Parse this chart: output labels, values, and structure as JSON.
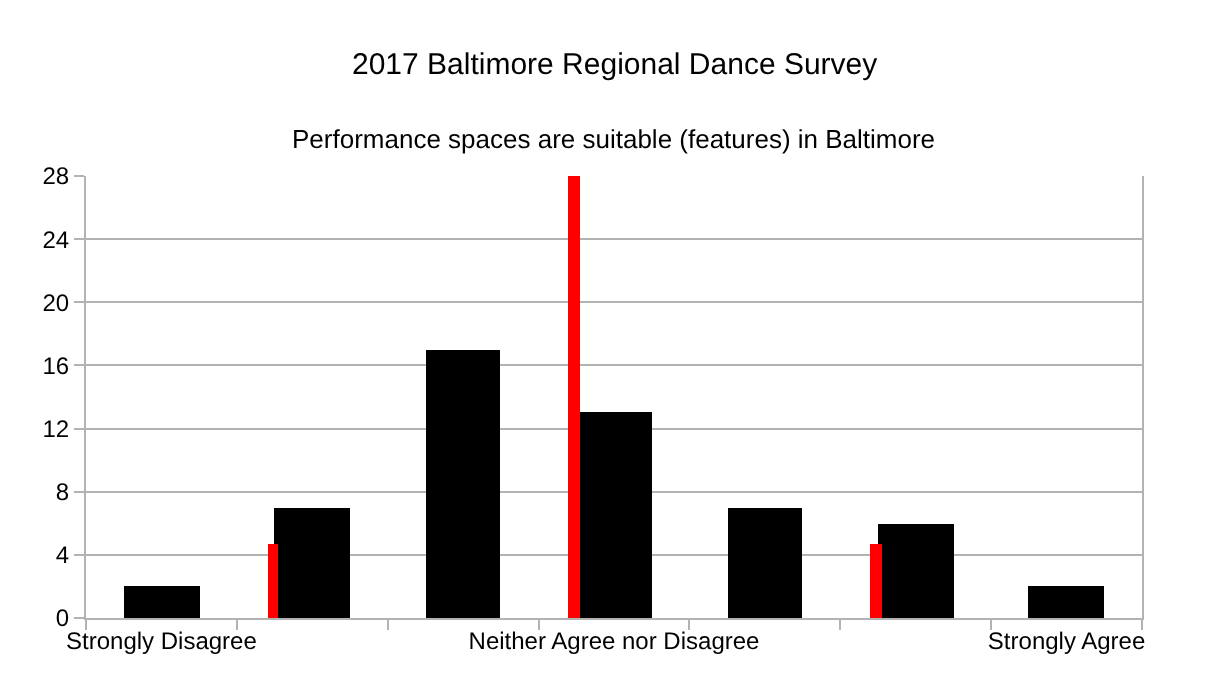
{
  "chart_data": {
    "type": "bar",
    "title": "2017 Baltimore Regional Dance Survey",
    "subtitle": "Performance spaces are suitable (features) in Baltimore",
    "categories": [
      "Strongly Disagree",
      null,
      null,
      "Neither Agree nor Disagree",
      null,
      null,
      "Strongly Agree"
    ],
    "series": [
      {
        "color": "#000000",
        "values": [
          2,
          7,
          17,
          13,
          7,
          6,
          2
        ]
      },
      {
        "color": "#ff0000",
        "values": [
          null,
          4.7,
          null,
          28,
          null,
          4.7,
          null
        ]
      }
    ],
    "ylim": [
      0,
      28
    ],
    "yticks": [
      0,
      4,
      8,
      12,
      16,
      20,
      24,
      28
    ],
    "grid": "y"
  }
}
